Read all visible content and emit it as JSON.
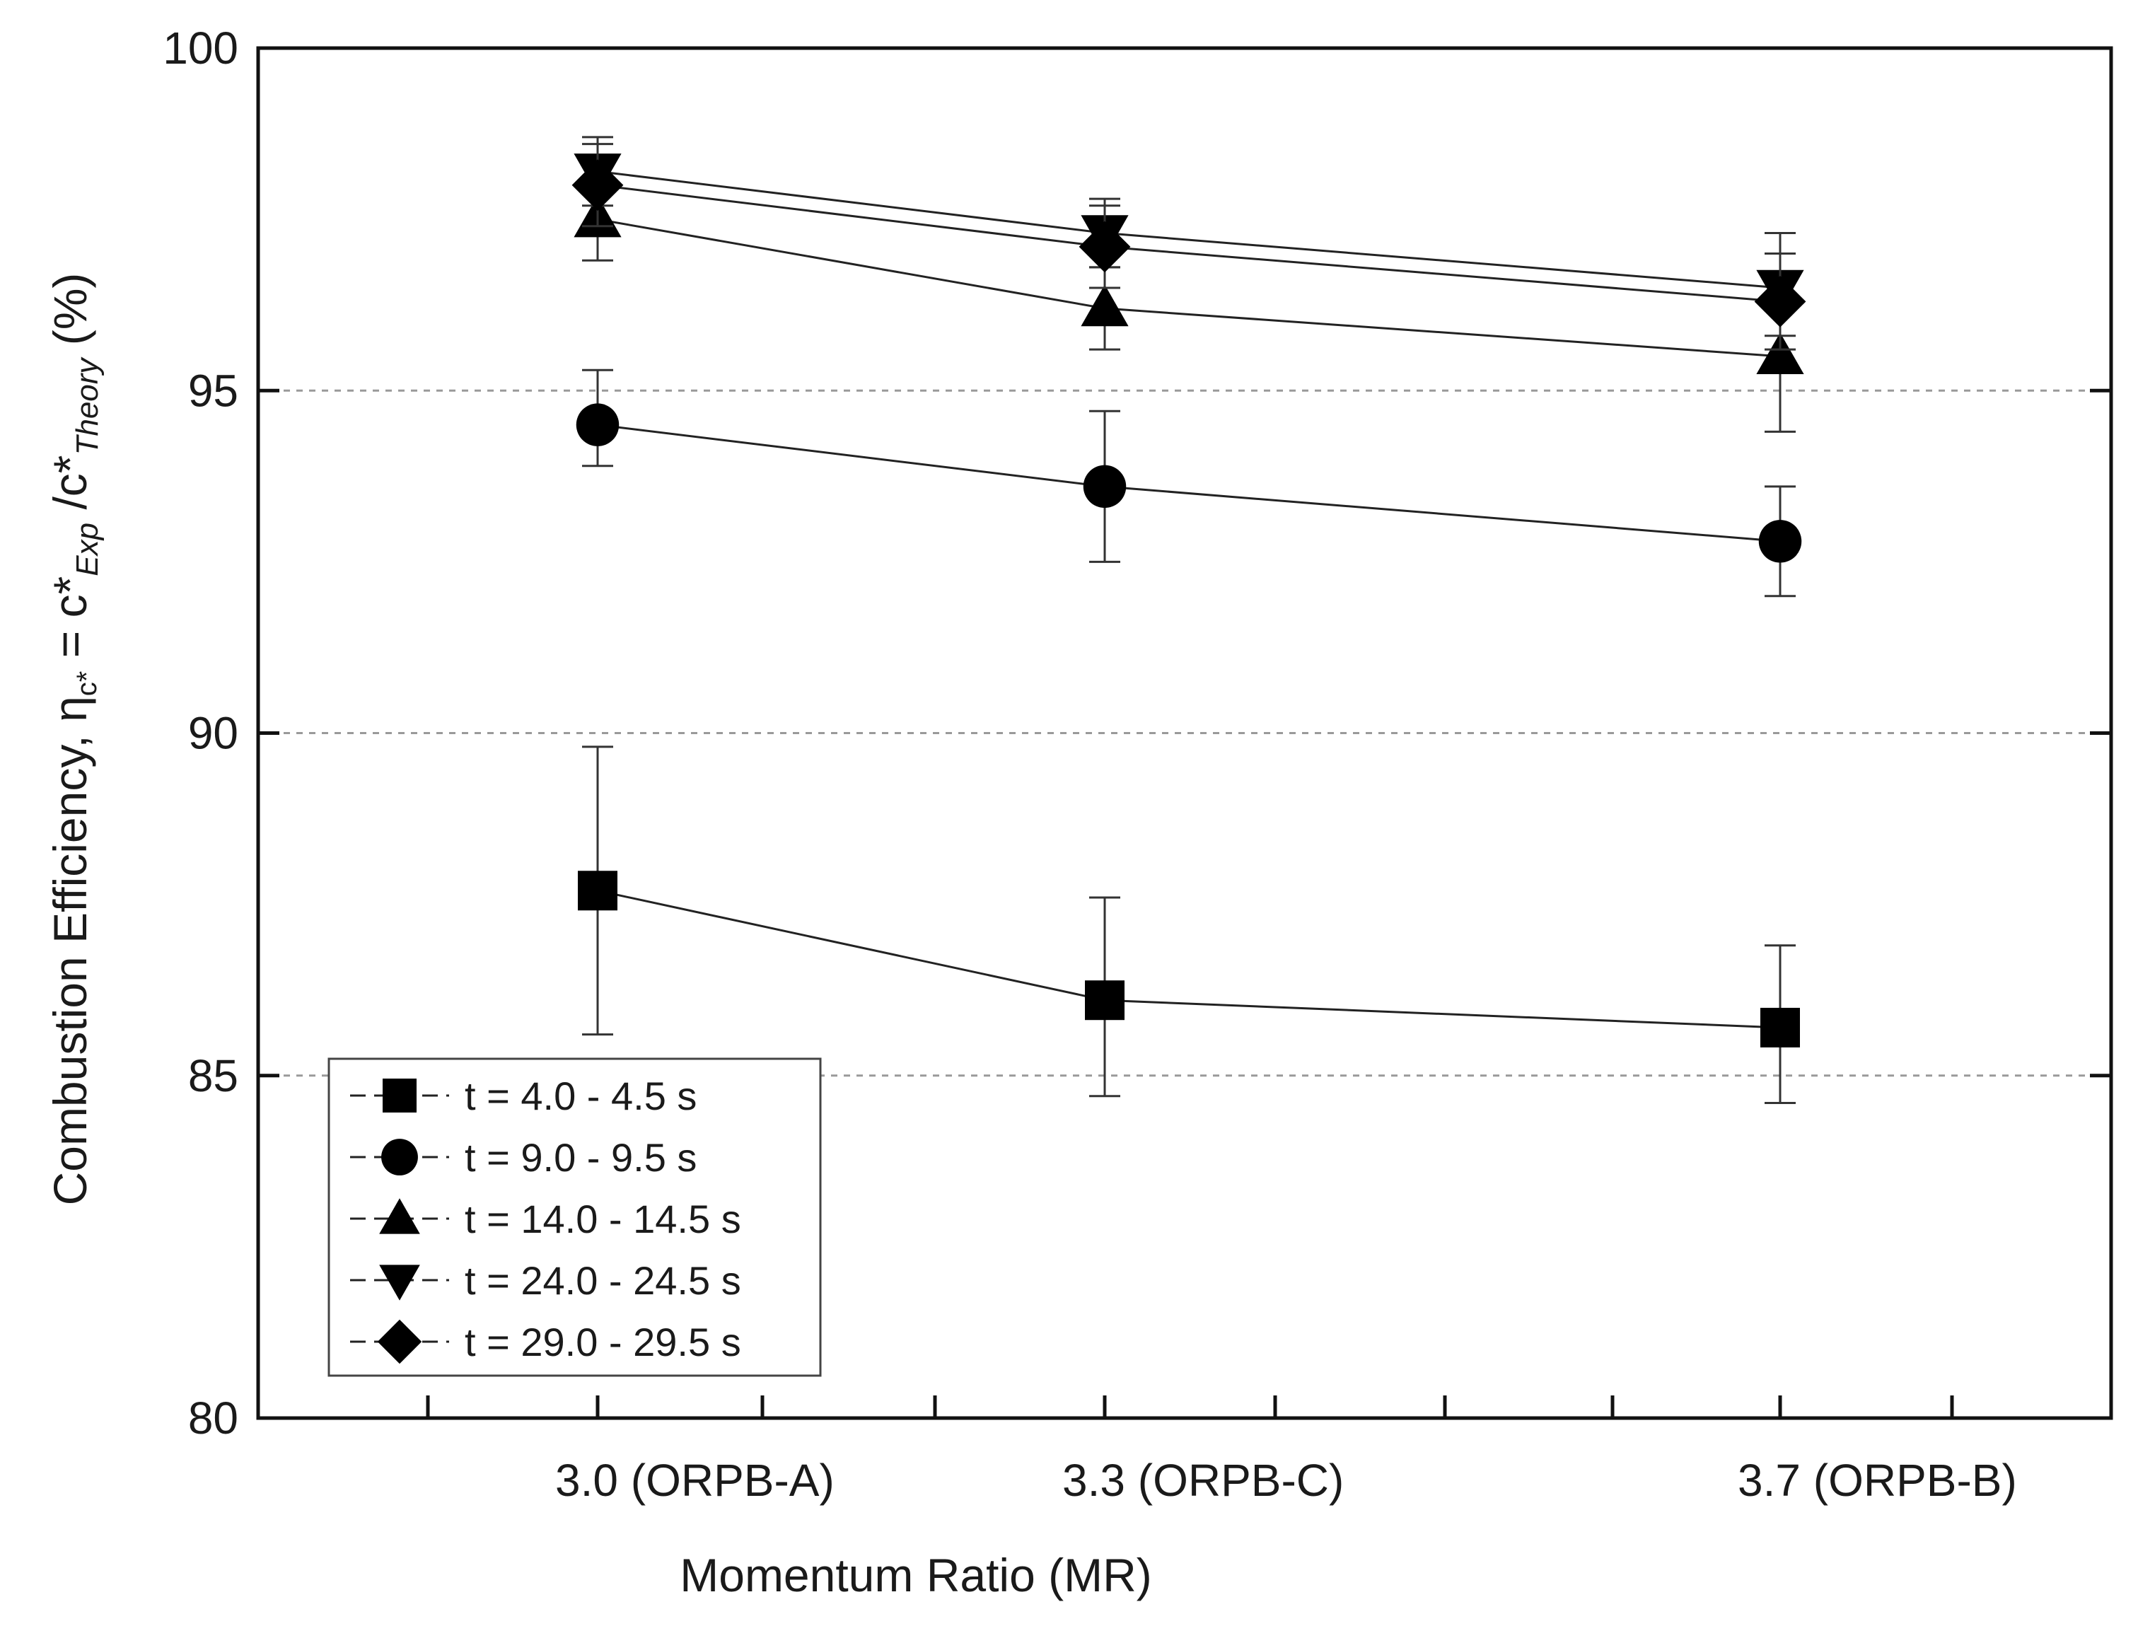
{
  "chart_data": {
    "type": "line",
    "xlabel": "Momentum Ratio (MR)",
    "ylabel": {
      "prefix": "Combustion Efficiency, η",
      "eta_sub": "c*",
      "eq": " = c*",
      "exp_sub": "Exp",
      "div": " /c*",
      "theory_sub": "Theory",
      "unit": "   (%)"
    },
    "ylim": [
      80,
      100
    ],
    "yticks": [
      "80",
      "85",
      "90",
      "95",
      "100"
    ],
    "grid": "dotted horizontal at 85, 90, 95",
    "categories": [
      "3.0  (ORPB-A)",
      "3.3  (ORPB-C)",
      "3.7  (ORPB-B)"
    ],
    "legend_position": "bottom-left",
    "series": [
      {
        "name": "t = 4.0 - 4.5 s",
        "marker": "square",
        "values": [
          87.7,
          86.1,
          85.7
        ],
        "err_low": [
          85.6,
          84.7,
          84.6
        ],
        "err_high": [
          89.8,
          87.6,
          86.9
        ]
      },
      {
        "name": "t = 9.0 - 9.5 s",
        "marker": "circle",
        "values": [
          94.5,
          93.6,
          92.8
        ],
        "err_low": [
          93.9,
          92.5,
          92.0
        ],
        "err_high": [
          95.3,
          94.7,
          93.6
        ]
      },
      {
        "name": "t = 14.0 - 14.5 s",
        "marker": "triangle-up",
        "values": [
          97.5,
          96.2,
          95.5
        ],
        "err_low": [
          96.9,
          95.6,
          94.4
        ],
        "err_high": [
          98.1,
          96.8,
          96.6
        ]
      },
      {
        "name": "t = 24.0 - 24.5 s",
        "marker": "triangle-down",
        "values": [
          98.2,
          97.3,
          96.5
        ],
        "err_low": [
          97.7,
          96.8,
          95.8
        ],
        "err_high": [
          98.7,
          97.8,
          97.3
        ]
      },
      {
        "name": "t = 29.0 - 29.5 s",
        "marker": "diamond",
        "values": [
          98.0,
          97.1,
          96.3
        ],
        "err_low": [
          97.4,
          96.5,
          95.6
        ],
        "err_high": [
          98.6,
          97.7,
          97.0
        ]
      }
    ]
  }
}
